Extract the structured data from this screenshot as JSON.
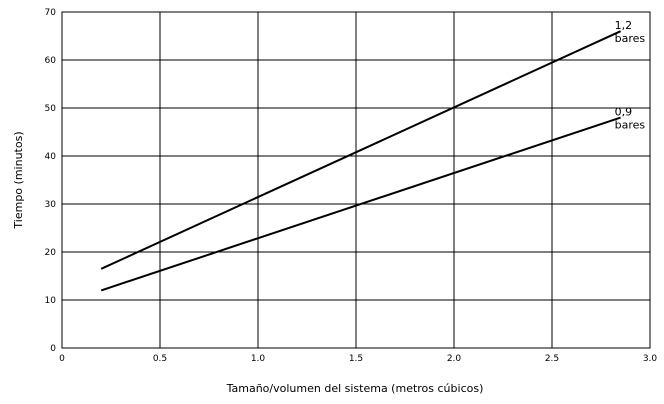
{
  "chart_data": {
    "type": "line",
    "xlabel": "Tamaño/volumen del sistema (metros cúbicos)",
    "ylabel": "Tiempo (minutos)",
    "xlim": [
      0,
      3.0
    ],
    "ylim": [
      0,
      70
    ],
    "x_ticks": [
      0,
      0.5,
      1.0,
      1.5,
      2.0,
      2.5,
      3.0
    ],
    "x_tick_labels": [
      "0",
      "0.5",
      "1.0",
      "1.5",
      "2.0",
      "2.5",
      "3.0"
    ],
    "y_ticks": [
      0,
      10,
      20,
      30,
      40,
      50,
      60,
      70
    ],
    "y_tick_labels": [
      "0",
      "10",
      "20",
      "30",
      "40",
      "50",
      "60",
      "70"
    ],
    "grid": true,
    "legend": "inline labels at line ends (right)",
    "series": [
      {
        "name": "1,2 bares",
        "label_lines": [
          "1,2",
          "bares"
        ],
        "x": [
          0.2,
          2.85
        ],
        "y": [
          16.5,
          66
        ]
      },
      {
        "name": "0,9 bares",
        "label_lines": [
          "0,9",
          "bares"
        ],
        "x": [
          0.2,
          2.85
        ],
        "y": [
          12,
          48
        ]
      }
    ],
    "colors": {
      "line": "#000000",
      "grid": "#000000",
      "background": "#ffffff"
    }
  }
}
